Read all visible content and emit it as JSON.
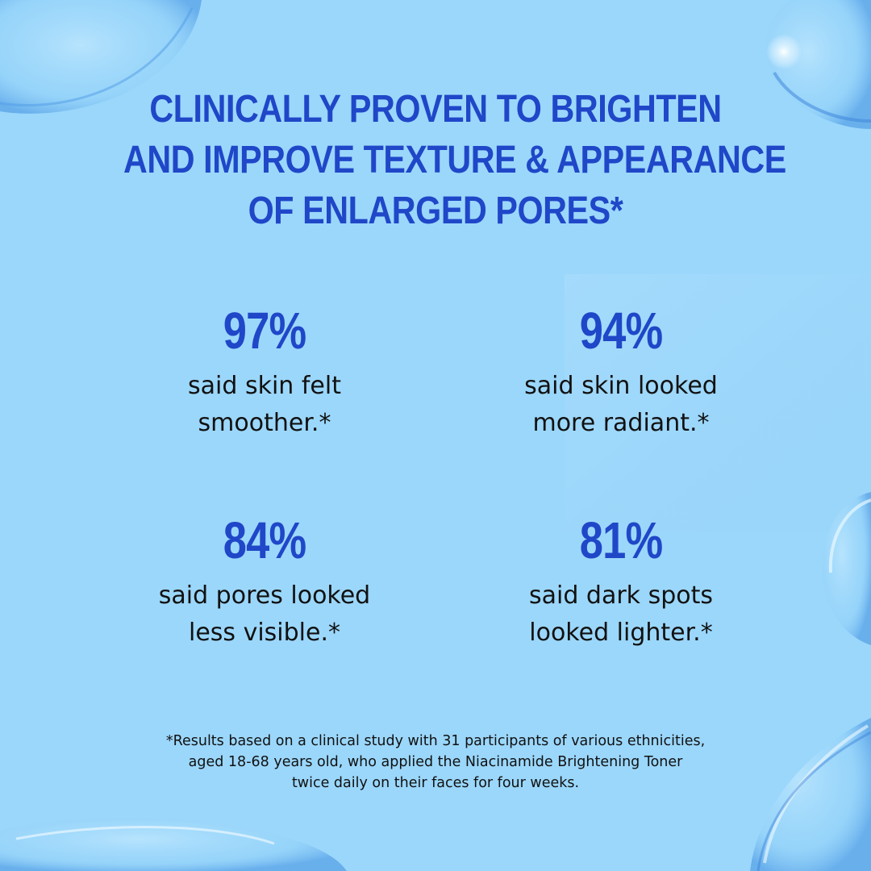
{
  "colors": {
    "background": "#9bd7fb",
    "accent_blue": "#1f47c8",
    "body_text": "#111111"
  },
  "headline": {
    "line1": "CLINICALLY PROVEN TO BRIGHTEN",
    "line2": "AND IMPROVE TEXTURE & APPEARANCE",
    "line3": "OF ENLARGED PORES*"
  },
  "stats": [
    {
      "percent": "97%",
      "line1": "said skin felt",
      "line2": "smoother.*"
    },
    {
      "percent": "94%",
      "line1": "said skin looked",
      "line2": "more radiant.*"
    },
    {
      "percent": "84%",
      "line1": "said pores looked",
      "line2": "less visible.*"
    },
    {
      "percent": "81%",
      "line1": "said dark spots",
      "line2": "looked lighter.*"
    }
  ],
  "footnote": {
    "line1": "*Results based on a clinical study with 31 participants of various ethnicities,",
    "line2": "aged 18-68 years old, who applied the Niacinamide Brightening Toner",
    "line3": "twice daily on their faces for four weeks."
  }
}
